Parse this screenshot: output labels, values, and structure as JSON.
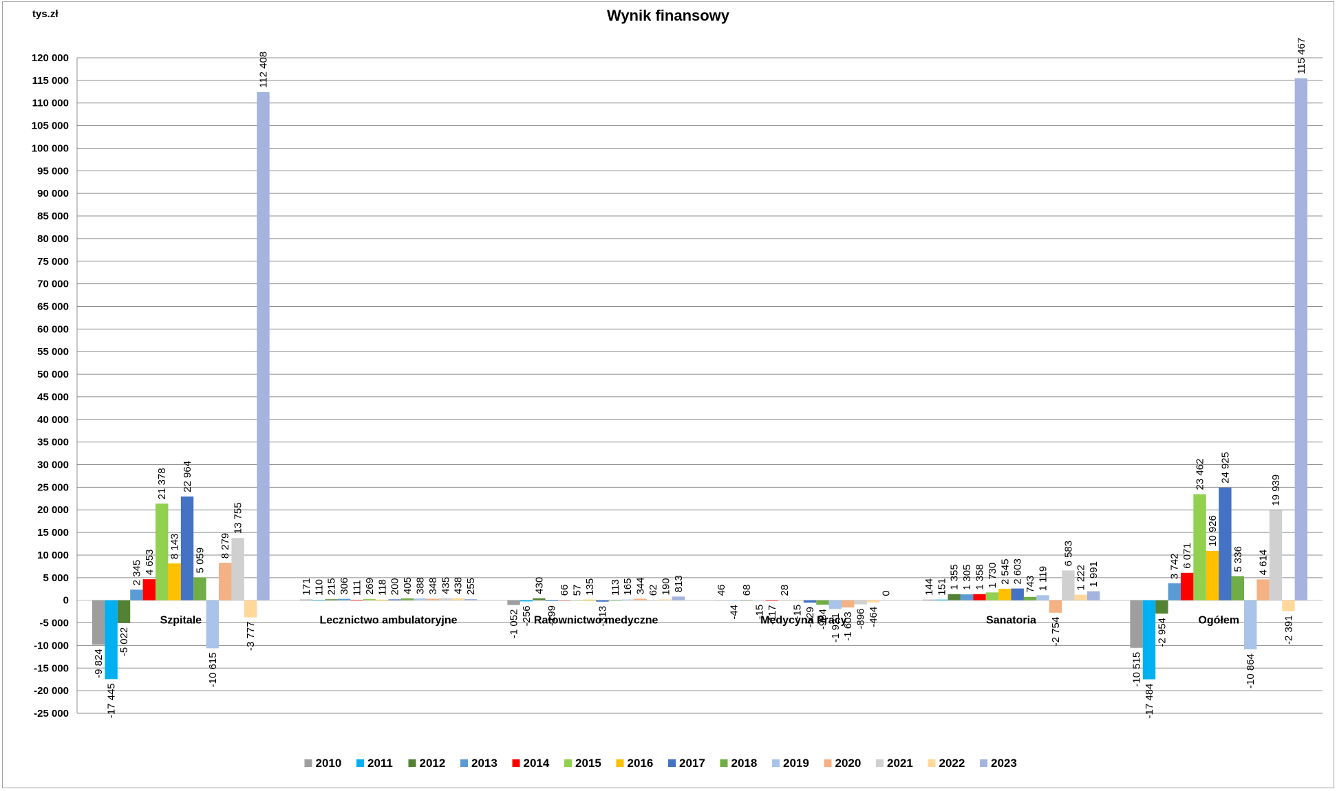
{
  "chart_data": {
    "type": "bar",
    "title": "Wynik finansowy",
    "ylabel": "tys.zł",
    "ylim": [
      -25000,
      120000
    ],
    "ytick_step": 5000,
    "grid": true,
    "legend_position": "bottom",
    "categories": [
      "Szpitale",
      "Lecznictwo ambulatoryjne",
      "Ratownictwo medyczne",
      "Medycyna Pracy",
      "Sanatoria",
      "Ogółem"
    ],
    "series": [
      {
        "name": "2010",
        "color": "#9E9E9E",
        "values": [
          -9824,
          171,
          -1052,
          46,
          144,
          -10515
        ],
        "labels": [
          "-9 824",
          "171",
          "-1 052",
          "46",
          "144",
          "-10 515"
        ]
      },
      {
        "name": "2011",
        "color": "#00B0F0",
        "values": [
          -17445,
          110,
          -256,
          -44,
          151,
          -17484
        ],
        "labels": [
          "-17 445",
          "110",
          "-256",
          "-44",
          "151",
          "-17 484"
        ]
      },
      {
        "name": "2012",
        "color": "#548235",
        "values": [
          -5022,
          215,
          430,
          68,
          1355,
          -2954
        ],
        "labels": [
          "-5 022",
          "215",
          "430",
          "68",
          "1 355",
          "-2 954"
        ]
      },
      {
        "name": "2013",
        "color": "#5B9BD5",
        "values": [
          2345,
          306,
          -199,
          -15,
          1305,
          3742
        ],
        "labels": [
          "2 345",
          "306",
          "-199",
          "-15",
          "1 305",
          "3 742"
        ]
      },
      {
        "name": "2014",
        "color": "#FF0000",
        "values": [
          4653,
          111,
          66,
          -117,
          1358,
          6071
        ],
        "labels": [
          "4 653",
          "111",
          "66",
          "-117",
          "1 358",
          "6 071"
        ]
      },
      {
        "name": "2015",
        "color": "#92D050",
        "values": [
          21378,
          269,
          57,
          28,
          1730,
          23462
        ],
        "labels": [
          "21 378",
          "269",
          "57",
          "28",
          "1 730",
          "23 462"
        ]
      },
      {
        "name": "2016",
        "color": "#FFC000",
        "values": [
          8143,
          118,
          135,
          -15,
          2545,
          10926
        ],
        "labels": [
          "8 143",
          "118",
          "135",
          "-15",
          "2 545",
          "10 926"
        ]
      },
      {
        "name": "2017",
        "color": "#4472C4",
        "values": [
          22964,
          200,
          -313,
          -529,
          2603,
          24925
        ],
        "labels": [
          "22 964",
          "200",
          "-313",
          "-529",
          "2 603",
          "24 925"
        ]
      },
      {
        "name": "2018",
        "color": "#70AD47",
        "values": [
          5059,
          405,
          113,
          -984,
          743,
          5336
        ],
        "labels": [
          "5 059",
          "405",
          "113",
          "-984",
          "743",
          "5 336"
        ]
      },
      {
        "name": "2019",
        "color": "#A9C4E8",
        "values": [
          -10615,
          388,
          165,
          -1921,
          1119,
          -10864
        ],
        "labels": [
          "-10 615",
          "388",
          "165",
          "-1 921",
          "1 119",
          "-10 864"
        ]
      },
      {
        "name": "2020",
        "color": "#F4B183",
        "values": [
          8279,
          348,
          344,
          -1603,
          -2754,
          4614
        ],
        "labels": [
          "8 279",
          "348",
          "344",
          "-1 603",
          "-2 754",
          "4 614"
        ]
      },
      {
        "name": "2021",
        "color": "#D0D0D0",
        "values": [
          13755,
          435,
          62,
          -896,
          6583,
          19939
        ],
        "labels": [
          "13 755",
          "435",
          "62",
          "-896",
          "6 583",
          "19 939"
        ]
      },
      {
        "name": "2022",
        "color": "#FFD89A",
        "values": [
          -3777,
          438,
          190,
          -464,
          1222,
          -2391
        ],
        "labels": [
          "-3 777",
          "438",
          "190",
          "-464",
          "1 222",
          "-2 391"
        ]
      },
      {
        "name": "2023",
        "color": "#A4B4DE",
        "values": [
          112408,
          255,
          813,
          0,
          1991,
          115467
        ],
        "labels": [
          "112 408",
          "255",
          "813",
          "0",
          "1 991",
          "115 467"
        ]
      }
    ]
  }
}
